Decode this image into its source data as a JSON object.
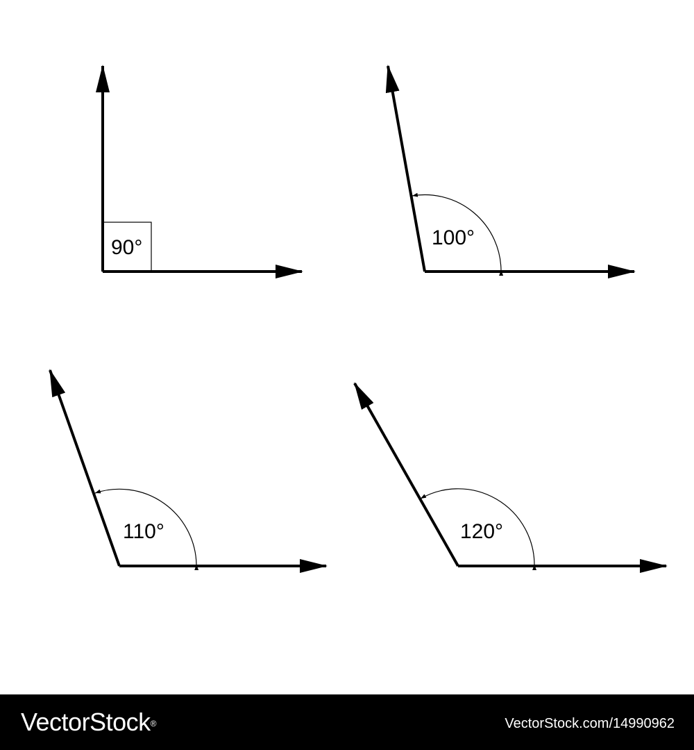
{
  "angles": [
    {
      "label": "90°",
      "degrees": 90,
      "marker": "right-angle-square"
    },
    {
      "label": "100°",
      "degrees": 100,
      "marker": "arc"
    },
    {
      "label": "110°",
      "degrees": 110,
      "marker": "arc"
    },
    {
      "label": "120°",
      "degrees": 120,
      "marker": "arc"
    }
  ],
  "colors": {
    "stroke": "#000000",
    "background": "#ffffff",
    "footer_background": "#000000",
    "footer_text": "#ffffff"
  },
  "footer": {
    "logo_text": "VectorStock",
    "logo_mark": "®",
    "image_id": "VectorStock.com/14990962"
  }
}
